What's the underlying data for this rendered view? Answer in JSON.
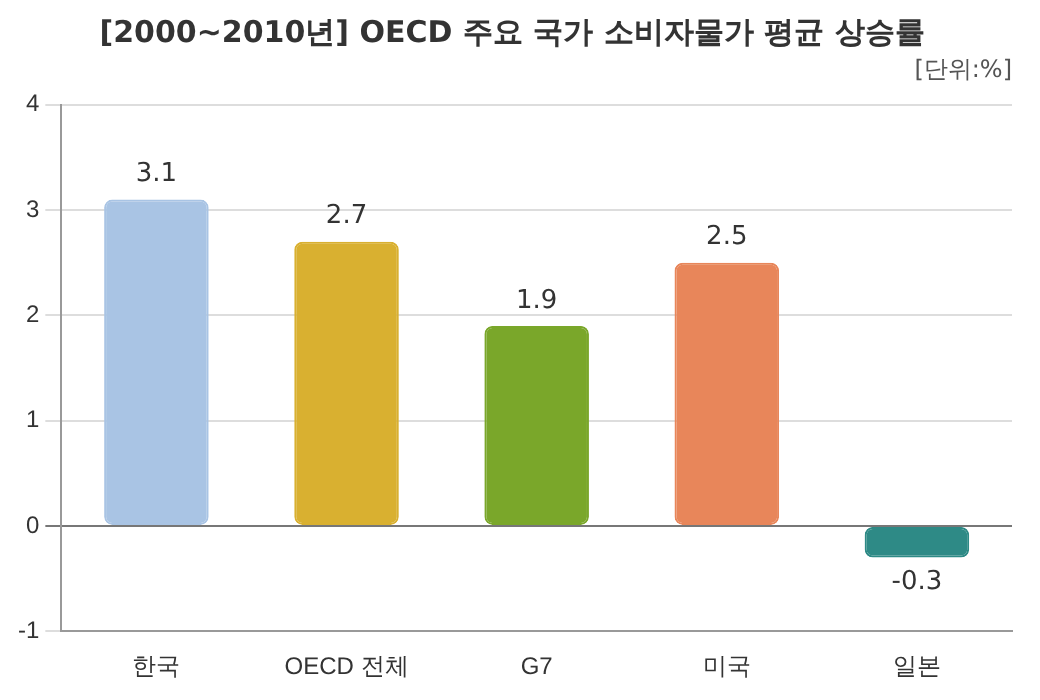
{
  "chart_data": {
    "type": "bar",
    "title": "[2000~2010년] OECD 주요 국가 소비자물가 평균 상승률",
    "subtitle": "[단위:%]",
    "categories": [
      "한국",
      "OECD 전체",
      "G7",
      "미국",
      "일본"
    ],
    "values": [
      3.1,
      2.7,
      1.9,
      2.5,
      -0.3
    ],
    "colors": [
      "#a9c4e4",
      "#d9b030",
      "#7aa72a",
      "#e8865a",
      "#2e8a86"
    ],
    "ylim": [
      -1,
      4
    ],
    "yticks": [
      -1,
      0,
      1,
      2,
      3,
      4
    ],
    "grid": "y",
    "data_labels": true,
    "legend": false
  }
}
